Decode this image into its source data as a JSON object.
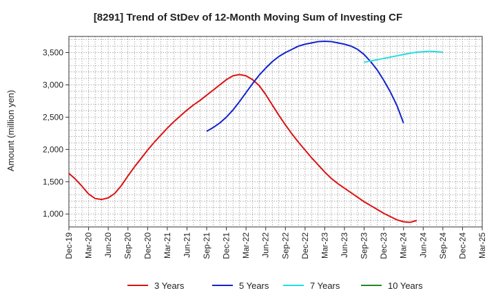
{
  "chart_data": {
    "type": "line",
    "title": "[8291]  Trend of StDev of 12-Month Moving Sum of Investing CF",
    "xlabel": "",
    "ylabel": "Amount (million yen)",
    "x_ticks": [
      "Dec-19",
      "Mar-20",
      "Jun-20",
      "Sep-20",
      "Dec-20",
      "Mar-21",
      "Jun-21",
      "Sep-21",
      "Dec-21",
      "Mar-22",
      "Jun-22",
      "Sep-22",
      "Dec-22",
      "Mar-23",
      "Jun-23",
      "Sep-23",
      "Dec-23",
      "Mar-24",
      "Jun-24",
      "Sep-24",
      "Dec-24",
      "Mar-25"
    ],
    "y_ticks": [
      1000,
      1500,
      2000,
      2500,
      3000,
      3500
    ],
    "y_tick_labels": [
      "1,000",
      "1,500",
      "2,000",
      "2,500",
      "3,000",
      "3,500"
    ],
    "ylim": [
      800,
      3750
    ],
    "grid": true,
    "legend_position": "bottom",
    "series": [
      {
        "name": "3 Years",
        "color": "#dd1111",
        "start": "Dec-19",
        "values": [
          1630,
          1540,
          1430,
          1310,
          1240,
          1225,
          1250,
          1320,
          1440,
          1590,
          1730,
          1860,
          1990,
          2110,
          2220,
          2330,
          2430,
          2520,
          2610,
          2690,
          2760,
          2840,
          2920,
          3000,
          3080,
          3140,
          3160,
          3140,
          3080,
          2990,
          2850,
          2690,
          2530,
          2380,
          2240,
          2110,
          1990,
          1870,
          1760,
          1650,
          1550,
          1470,
          1400,
          1330,
          1260,
          1190,
          1130,
          1070,
          1010,
          960,
          910,
          880,
          870,
          900
        ],
        "values_2": []
      },
      {
        "name": "5 Years",
        "color": "#1122cc",
        "start": "Sep-21",
        "values": [
          2280,
          2340,
          2410,
          2500,
          2610,
          2740,
          2880,
          3020,
          3150,
          3260,
          3360,
          3440,
          3500,
          3550,
          3600,
          3630,
          3650,
          3670,
          3675,
          3670,
          3650,
          3630,
          3600,
          3550,
          3470,
          3360,
          3230,
          3070,
          2890,
          2680,
          2410
        ]
      },
      {
        "name": "7 Years",
        "color": "#22dddd",
        "start": "Sep-23",
        "values": [
          3350,
          3370,
          3390,
          3410,
          3430,
          3450,
          3470,
          3490,
          3505,
          3515,
          3520,
          3515,
          3505
        ]
      },
      {
        "name": "10 Years",
        "color": "#228822",
        "start": "Sep-24",
        "values": []
      }
    ]
  }
}
